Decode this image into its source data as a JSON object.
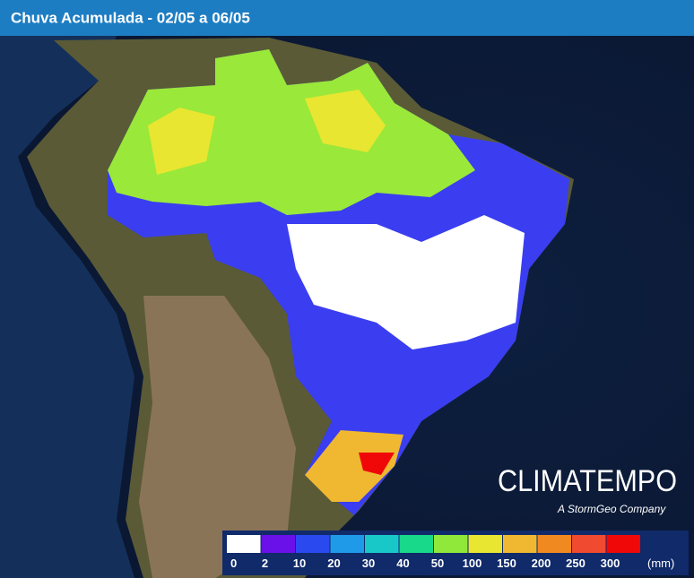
{
  "header": {
    "title": "Chuva Acumulada - 02/05 a 06/05"
  },
  "brand": {
    "name": "CLIMATEMPO",
    "tagline": "A StormGeo Company"
  },
  "legend": {
    "unit": "(mm)",
    "items": [
      {
        "label": "0",
        "color": "#ffffff"
      },
      {
        "label": "2",
        "color": "#6a10e8"
      },
      {
        "label": "10",
        "color": "#2a4af0"
      },
      {
        "label": "20",
        "color": "#1e9ae8"
      },
      {
        "label": "30",
        "color": "#18c8c8"
      },
      {
        "label": "40",
        "color": "#18d88a"
      },
      {
        "label": "50",
        "color": "#8fe83a"
      },
      {
        "label": "100",
        "color": "#e8e630"
      },
      {
        "label": "150",
        "color": "#f0b830"
      },
      {
        "label": "200",
        "color": "#f08a20"
      },
      {
        "label": "250",
        "color": "#f04a30"
      },
      {
        "label": "300",
        "color": "#f00808"
      }
    ]
  }
}
